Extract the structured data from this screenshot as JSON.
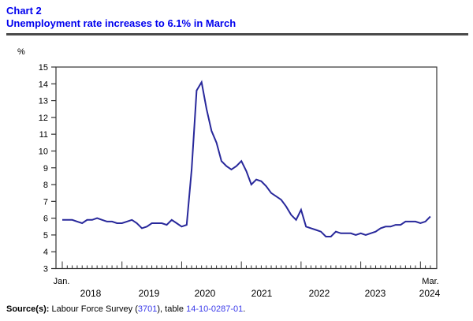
{
  "header": {
    "chart_label": "Chart 2",
    "title": "Unemployment rate increases to 6.1% in March"
  },
  "y_axis": {
    "unit_label": "%",
    "min": 3,
    "max": 15,
    "tick_step": 1,
    "tick_labels": [
      "3",
      "4",
      "5",
      "6",
      "7",
      "8",
      "9",
      "10",
      "11",
      "12",
      "13",
      "14",
      "15"
    ]
  },
  "x_axis": {
    "start_label": "Jan.",
    "end_label": "Mar.",
    "year_labels": [
      "2018",
      "2019",
      "2020",
      "2021",
      "2022",
      "2023",
      "2024"
    ],
    "minor_tick_unit": "month",
    "major_tick_unit": "year"
  },
  "source": {
    "label": "Source(s):",
    "pre": " Labour Force Survey (",
    "survey_link": "3701",
    "mid": "), table ",
    "table_link": "14-10-0287-01",
    "end": "."
  },
  "colors": {
    "title_blue": "#0000ee",
    "line_blue": "#28289b",
    "link_blue": "#3b3bea",
    "axis": "#333333",
    "rule": "#4a4a4a",
    "text": "#000000"
  },
  "chart_data": {
    "type": "line",
    "title": "Unemployment rate increases to 6.1% in March",
    "xlabel": "",
    "ylabel": "%",
    "ylim": [
      3,
      15
    ],
    "x_start": "2018-01",
    "x_end": "2024-03",
    "frequency": "monthly",
    "grid": false,
    "legend": "none",
    "series": [
      {
        "name": "Unemployment rate (%)",
        "values": [
          5.9,
          5.9,
          5.9,
          5.8,
          5.7,
          5.9,
          5.9,
          6.0,
          5.9,
          5.8,
          5.8,
          5.7,
          5.7,
          5.8,
          5.9,
          5.7,
          5.4,
          5.5,
          5.7,
          5.7,
          5.7,
          5.6,
          5.9,
          5.7,
          5.5,
          5.6,
          8.9,
          13.6,
          14.1,
          12.5,
          11.2,
          10.5,
          9.4,
          9.1,
          8.9,
          9.1,
          9.4,
          8.8,
          8.0,
          8.3,
          8.2,
          7.9,
          7.5,
          7.3,
          7.1,
          6.7,
          6.2,
          5.9,
          6.5,
          5.5,
          5.4,
          5.3,
          5.2,
          4.9,
          4.9,
          5.2,
          5.1,
          5.1,
          5.1,
          5.0,
          5.1,
          5.0,
          5.1,
          5.2,
          5.4,
          5.5,
          5.5,
          5.6,
          5.6,
          5.8,
          5.8,
          5.8,
          5.7,
          5.8,
          6.1
        ]
      }
    ],
    "annotations": {
      "last_point_label": "Mar 2024 = 6.1%",
      "peak_label": "May 2020 = 14.1%"
    }
  }
}
